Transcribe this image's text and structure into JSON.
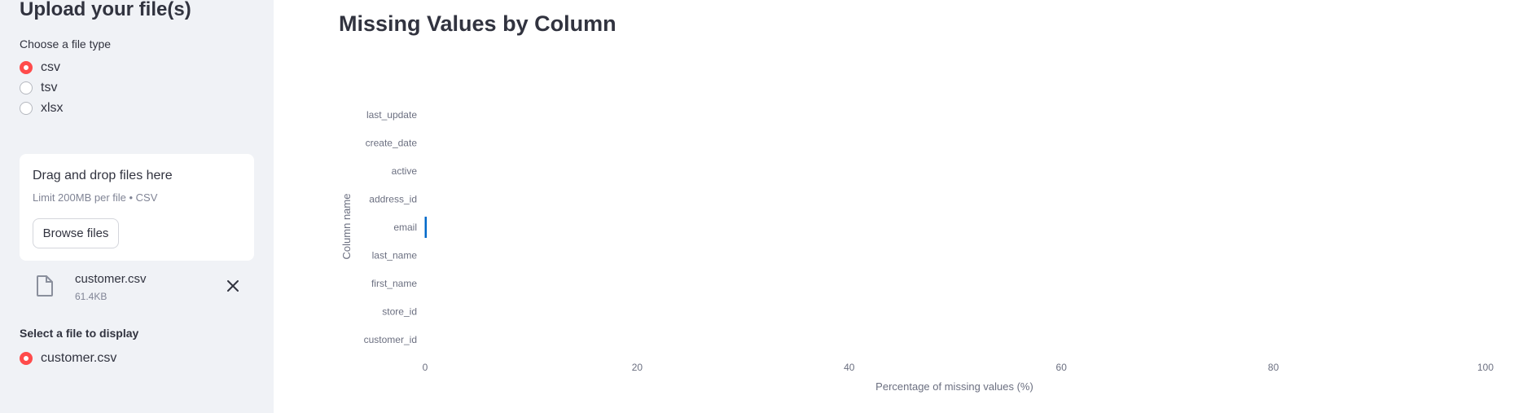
{
  "sidebar": {
    "title": "Upload your file(s)",
    "file_type_label": "Choose a file type",
    "file_types": [
      {
        "label": "csv",
        "checked": true
      },
      {
        "label": "tsv",
        "checked": false
      },
      {
        "label": "xlsx",
        "checked": false
      }
    ],
    "dropzone": {
      "title": "Drag and drop files here",
      "limit": "Limit 200MB per file • CSV",
      "browse_label": "Browse files"
    },
    "uploaded_file": {
      "name": "customer.csv",
      "size": "61.4KB"
    },
    "select_label": "Select a file to display",
    "display_options": [
      {
        "label": "customer.csv",
        "checked": true
      }
    ]
  },
  "main": {
    "title": "Missing Values by Column"
  },
  "colors": {
    "accent": "#ff4b4b",
    "bar": "#0068c9",
    "sidebar_bg": "#f0f2f6"
  },
  "chart_data": {
    "type": "bar",
    "orientation": "horizontal",
    "title": "",
    "xlabel": "Percentage of missing values (%)",
    "ylabel": "Column name",
    "categories": [
      "last_update",
      "create_date",
      "active",
      "address_id",
      "email",
      "last_name",
      "first_name",
      "store_id",
      "customer_id"
    ],
    "values": [
      0,
      0,
      0,
      0,
      0.1,
      0,
      0,
      0,
      0
    ],
    "xlim": [
      0,
      100
    ],
    "xticks": [
      0,
      20,
      40,
      60,
      80,
      100
    ],
    "grid": false
  }
}
